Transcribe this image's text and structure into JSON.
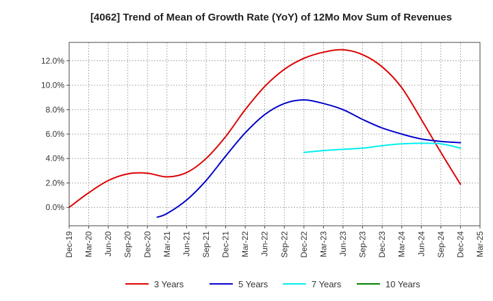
{
  "chart_data": {
    "type": "line",
    "title": "[4062]  Trend of Mean of Growth Rate (YoY) of 12Mo Mov Sum of Revenues",
    "xlabel": "",
    "ylabel": "",
    "ylim": [
      -1.5,
      13.5
    ],
    "y_ticks": [
      0,
      2,
      4,
      6,
      8,
      10,
      12
    ],
    "y_tick_labels": [
      "0.0%",
      "2.0%",
      "4.0%",
      "6.0%",
      "8.0%",
      "10.0%",
      "12.0%"
    ],
    "x_tick_labels": [
      "Dec-19",
      "Mar-20",
      "Jun-20",
      "Sep-20",
      "Dec-20",
      "Mar-21",
      "Jun-21",
      "Sep-21",
      "Dec-21",
      "Mar-22",
      "Jun-22",
      "Sep-22",
      "Dec-22",
      "Mar-23",
      "Jun-23",
      "Sep-23",
      "Dec-23",
      "Mar-24",
      "Jun-24",
      "Sep-24",
      "Dec-24",
      "Mar-25"
    ],
    "grid": true,
    "legend_position": "bottom",
    "series": [
      {
        "name": "3 Years",
        "color": "#dd0000",
        "x": [
          0,
          1,
          2,
          3,
          4,
          5,
          6,
          7,
          8,
          9,
          10,
          11,
          12,
          13,
          14,
          15,
          16,
          17,
          18,
          19,
          20
        ],
        "values": [
          0.0,
          1.2,
          2.2,
          2.75,
          2.8,
          2.5,
          2.85,
          4.0,
          5.8,
          8.0,
          9.9,
          11.3,
          12.2,
          12.7,
          12.9,
          12.5,
          11.5,
          9.8,
          7.2,
          4.5,
          1.9
        ]
      },
      {
        "name": "5 Years",
        "color": "#0000cc",
        "x": [
          4.5,
          5,
          6,
          7,
          8,
          9,
          10,
          11,
          12,
          13,
          14,
          15,
          16,
          17,
          18,
          19,
          20
        ],
        "values": [
          -0.8,
          -0.5,
          0.6,
          2.2,
          4.2,
          6.1,
          7.6,
          8.5,
          8.8,
          8.5,
          8.0,
          7.2,
          6.5,
          6.0,
          5.6,
          5.4,
          5.3
        ]
      },
      {
        "name": "7 Years",
        "color": "#00eeee",
        "x": [
          12,
          13,
          14,
          15,
          16,
          17,
          18,
          19,
          20
        ],
        "values": [
          4.5,
          4.65,
          4.75,
          4.85,
          5.05,
          5.2,
          5.25,
          5.2,
          4.85
        ]
      },
      {
        "name": "10 Years",
        "color": "#008000",
        "x": [],
        "values": []
      }
    ]
  }
}
